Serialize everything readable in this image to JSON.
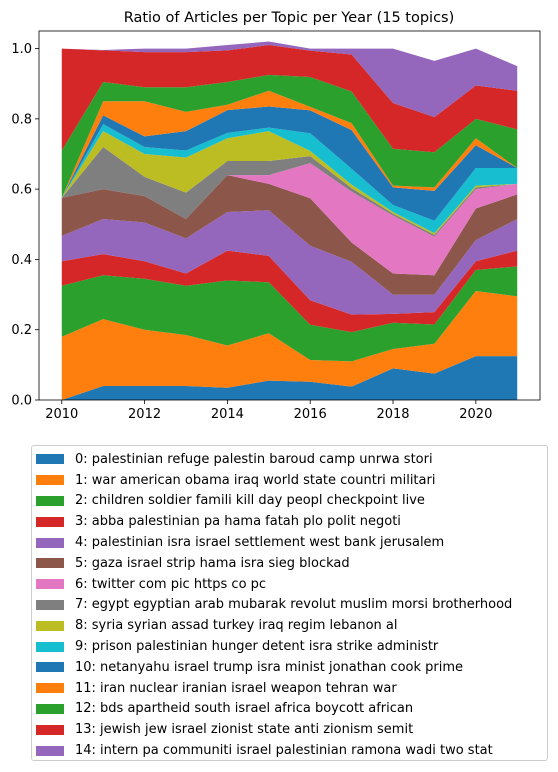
{
  "chart_data": {
    "type": "area",
    "stacked": true,
    "title": "Ratio of Articles per Topic per Year (15 topics)",
    "xlabel": "",
    "ylabel": "",
    "xlim": [
      2009.45,
      2021.55
    ],
    "ylim": [
      0,
      1.05
    ],
    "x": [
      2010,
      2011,
      2012,
      2013,
      2014,
      2015,
      2016,
      2017,
      2018,
      2019,
      2020,
      2021
    ],
    "x_ticks": [
      "2010",
      "2012",
      "2014",
      "2016",
      "2018",
      "2020"
    ],
    "y_ticks": [
      "0.0",
      "0.2",
      "0.4",
      "0.6",
      "0.8",
      "1.0"
    ],
    "grid": false,
    "legend_position": "below",
    "series": [
      {
        "name": "0: palestinian refuge palestin baroud camp unrwa stori",
        "color": "#1f77b4",
        "values": [
          0.0,
          0.04,
          0.04,
          0.04,
          0.035,
          0.055,
          0.052,
          0.038,
          0.09,
          0.075,
          0.125,
          0.125
        ]
      },
      {
        "name": "1: war american obama iraq world state countri militari",
        "color": "#ff7f0e",
        "values": [
          0.18,
          0.19,
          0.16,
          0.145,
          0.12,
          0.135,
          0.062,
          0.072,
          0.055,
          0.085,
          0.185,
          0.17
        ]
      },
      {
        "name": "2: children soldier famili kill day peopl checkpoint live",
        "color": "#2ca02c",
        "values": [
          0.145,
          0.125,
          0.145,
          0.14,
          0.185,
          0.145,
          0.1,
          0.083,
          0.075,
          0.055,
          0.06,
          0.085
        ]
      },
      {
        "name": "3: abba palestinian pa hama fatah plo polit negoti",
        "color": "#d62728",
        "values": [
          0.07,
          0.06,
          0.05,
          0.035,
          0.085,
          0.075,
          0.07,
          0.05,
          0.025,
          0.035,
          0.025,
          0.045
        ]
      },
      {
        "name": "4: palestinian isra israel settlement west bank jerusalem",
        "color": "#9467bd",
        "values": [
          0.072,
          0.1,
          0.11,
          0.1,
          0.11,
          0.13,
          0.155,
          0.15,
          0.055,
          0.05,
          0.06,
          0.09
        ]
      },
      {
        "name": "5: gaza israel strip hama isra sieg blockad",
        "color": "#8c564b",
        "values": [
          0.108,
          0.085,
          0.075,
          0.055,
          0.105,
          0.075,
          0.135,
          0.055,
          0.06,
          0.055,
          0.09,
          0.07
        ]
      },
      {
        "name": "6: twitter com pic https co pc",
        "color": "#e377c2",
        "values": [
          0.0,
          0.0,
          0.0,
          0.0,
          0.0,
          0.025,
          0.1,
          0.145,
          0.165,
          0.11,
          0.055,
          0.03
        ]
      },
      {
        "name": "7: egypt egyptian arab mubarak revolut muslim morsi brotherhood",
        "color": "#7f7f7f",
        "values": [
          0.0,
          0.12,
          0.055,
          0.075,
          0.04,
          0.04,
          0.02,
          0.01,
          0.005,
          0.005,
          0.005,
          0.0
        ]
      },
      {
        "name": "8: syria syrian assad turkey iraq regim lebanon al",
        "color": "#bcbd22",
        "values": [
          0.0,
          0.045,
          0.065,
          0.1,
          0.065,
          0.085,
          0.015,
          0.01,
          0.005,
          0.005,
          0.005,
          0.0
        ]
      },
      {
        "name": "9: prison palestinian hunger detent isra strike administr",
        "color": "#17becf",
        "values": [
          0.0,
          0.02,
          0.02,
          0.02,
          0.015,
          0.01,
          0.05,
          0.045,
          0.02,
          0.035,
          0.05,
          0.045
        ]
      },
      {
        "name": "10: netanyahu israel trump isra minist jonathan cook prime",
        "color": "#1f77b4",
        "values": [
          0.0,
          0.025,
          0.03,
          0.055,
          0.065,
          0.06,
          0.065,
          0.11,
          0.05,
          0.085,
          0.065,
          0.0
        ]
      },
      {
        "name": "11: iran nuclear iranian israel weapon tehran war",
        "color": "#ff7f0e",
        "values": [
          0.0,
          0.04,
          0.1,
          0.055,
          0.015,
          0.045,
          0.01,
          0.02,
          0.005,
          0.01,
          0.02,
          0.0
        ]
      },
      {
        "name": "12: bds apartheid south israel africa boycott african",
        "color": "#2ca02c",
        "values": [
          0.135,
          0.055,
          0.04,
          0.07,
          0.065,
          0.045,
          0.085,
          0.09,
          0.105,
          0.1,
          0.055,
          0.11
        ]
      },
      {
        "name": "13: jewish jew israel zionist state anti zionism semit",
        "color": "#d62728",
        "values": [
          0.29,
          0.09,
          0.1,
          0.1,
          0.09,
          0.085,
          0.075,
          0.105,
          0.13,
          0.1,
          0.095,
          0.11
        ]
      },
      {
        "name": "14: intern pa communiti israel palestinian ramona wadi two stat",
        "color": "#9467bd",
        "values": [
          0.0,
          0.001,
          0.01,
          0.01,
          0.015,
          0.01,
          0.006,
          0.017,
          0.155,
          0.16,
          0.105,
          0.07
        ]
      }
    ]
  }
}
